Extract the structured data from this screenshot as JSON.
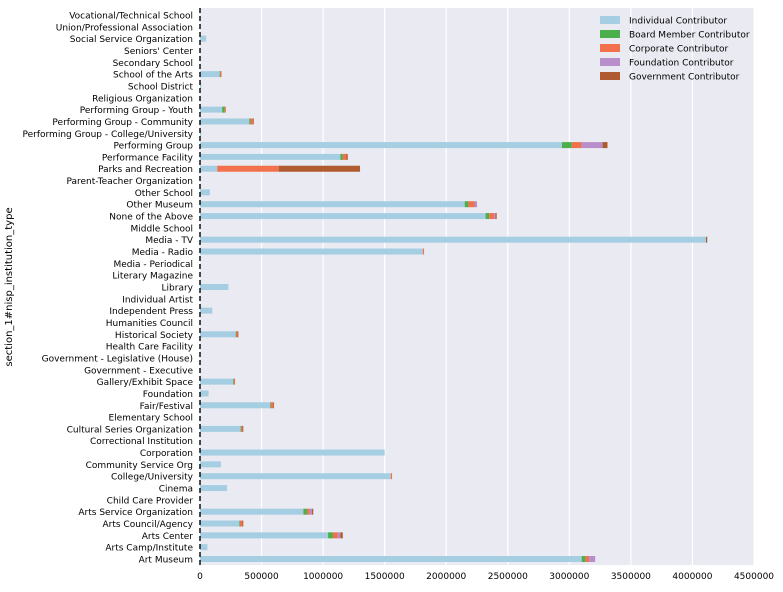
{
  "chart_data": {
    "type": "bar",
    "orientation": "horizontal",
    "stacked": true,
    "title": "",
    "xlabel": "",
    "ylabel": "section_1#nisp_institution_type",
    "xlim": [
      0,
      4500000
    ],
    "xticks": [
      0,
      500000,
      1000000,
      1500000,
      2000000,
      2500000,
      3000000,
      3500000,
      4000000,
      4500000
    ],
    "xtick_labels": [
      "0",
      "500000",
      "1000000",
      "1500000",
      "2000000",
      "2500000",
      "3000000",
      "3500000",
      "4000000",
      "4500000"
    ],
    "grid": true,
    "background": "#eaeaf2",
    "legend_position": "top-right",
    "categories": [
      "Art Museum",
      "Arts Camp/Institute",
      "Arts Center",
      "Arts Council/Agency",
      "Arts Service Organization",
      "Child Care Provider",
      "Cinema",
      "College/University",
      "Community Service Org",
      "Corporation",
      "Correctional Institution",
      "Cultural Series Organization",
      "Elementary School",
      "Fair/Festival",
      "Foundation",
      "Gallery/Exhibit Space",
      "Government - Executive",
      "Government - Legislative (House)",
      "Health Care Facility",
      "Historical Society",
      "Humanities Council",
      "Independent Press",
      "Individual Artist",
      "Library",
      "Literary Magazine",
      "Media - Periodical",
      "Media - Radio",
      "Media - TV",
      "Middle School",
      "None of the Above",
      "Other Museum",
      "Other School",
      "Parent-Teacher Organization",
      "Parks and Recreation",
      "Performance Facility",
      "Performing Group",
      "Performing Group - College/University",
      "Performing Group - Community",
      "Performing Group - Youth",
      "Religious Organization",
      "School District",
      "School of the Arts",
      "Secondary School",
      "Seniors' Center",
      "Social Service Organization",
      "Union/Professional Association",
      "Vocational/Technical School"
    ],
    "series": [
      {
        "name": "Individual Contributor",
        "color": "#a6cee3",
        "values": [
          3100000,
          60000,
          1040000,
          320000,
          840000,
          0,
          220000,
          1550000,
          170000,
          1500000,
          0,
          330000,
          0,
          570000,
          70000,
          270000,
          0,
          0,
          0,
          290000,
          0,
          100000,
          0,
          230000,
          0,
          0,
          1810000,
          4110000,
          0,
          2320000,
          2150000,
          80000,
          0,
          140000,
          1140000,
          2940000,
          10000,
          400000,
          180000,
          0,
          10000,
          160000,
          0,
          0,
          50000,
          0,
          0
        ]
      },
      {
        "name": "Board Member Contributor",
        "color": "#4daf4a",
        "values": [
          30000,
          0,
          40000,
          5000,
          30000,
          0,
          0,
          0,
          0,
          0,
          0,
          5000,
          0,
          5000,
          0,
          5000,
          0,
          0,
          0,
          5000,
          0,
          0,
          0,
          0,
          0,
          0,
          0,
          0,
          0,
          30000,
          30000,
          0,
          0,
          0,
          20000,
          80000,
          0,
          10000,
          20000,
          0,
          0,
          5000,
          0,
          0,
          0,
          0,
          0
        ]
      },
      {
        "name": "Corporate Contributor",
        "color": "#f1714c",
        "values": [
          30000,
          0,
          40000,
          20000,
          20000,
          0,
          0,
          10000,
          0,
          0,
          0,
          10000,
          0,
          20000,
          0,
          10000,
          0,
          0,
          0,
          10000,
          0,
          0,
          0,
          0,
          0,
          0,
          10000,
          0,
          0,
          40000,
          50000,
          0,
          0,
          500000,
          30000,
          80000,
          0,
          20000,
          10000,
          0,
          0,
          10000,
          0,
          0,
          0,
          0,
          0
        ]
      },
      {
        "name": "Foundation Contributor",
        "color": "#b98fcb",
        "values": [
          50000,
          0,
          20000,
          0,
          20000,
          0,
          0,
          0,
          0,
          0,
          0,
          0,
          0,
          0,
          0,
          0,
          0,
          0,
          0,
          0,
          0,
          0,
          0,
          0,
          0,
          0,
          0,
          0,
          0,
          10000,
          20000,
          0,
          0,
          0,
          0,
          170000,
          0,
          0,
          0,
          0,
          0,
          0,
          0,
          0,
          0,
          0,
          0
        ]
      },
      {
        "name": "Government Contributor",
        "color": "#b05a2f",
        "values": [
          0,
          0,
          20000,
          5000,
          10000,
          0,
          0,
          0,
          0,
          0,
          0,
          5000,
          0,
          5000,
          0,
          0,
          0,
          0,
          0,
          5000,
          0,
          0,
          0,
          0,
          0,
          0,
          0,
          10000,
          0,
          10000,
          0,
          0,
          0,
          660000,
          10000,
          40000,
          0,
          5000,
          0,
          0,
          0,
          0,
          0,
          0,
          0,
          0,
          0
        ]
      }
    ]
  }
}
